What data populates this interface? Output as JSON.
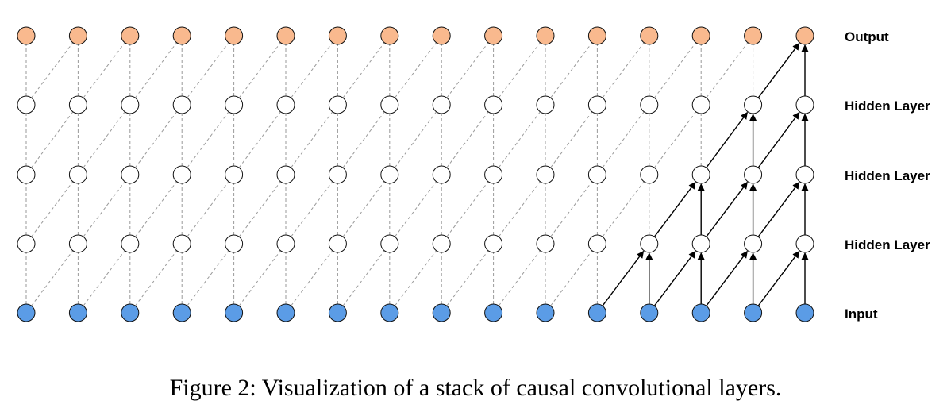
{
  "diagram": {
    "columns": 16,
    "layers": [
      {
        "label": "Output",
        "role": "output"
      },
      {
        "label": "Hidden Layer",
        "role": "hidden"
      },
      {
        "label": "Hidden Layer",
        "role": "hidden"
      },
      {
        "label": "Hidden Layer",
        "role": "hidden"
      },
      {
        "label": "Input",
        "role": "input"
      }
    ],
    "active_receptive_field": "last 5 input nodes feed the final output through kernel-size-2 causal connections",
    "colors": {
      "output": "#F9B98E",
      "hidden": "#FFFFFF",
      "input": "#5B9CE6",
      "node_stroke": "#111111",
      "dashed_edge": "#9a9a9a",
      "active_edge": "#000000"
    }
  },
  "caption": "Figure 2: Visualization of a stack of causal convolutional layers."
}
